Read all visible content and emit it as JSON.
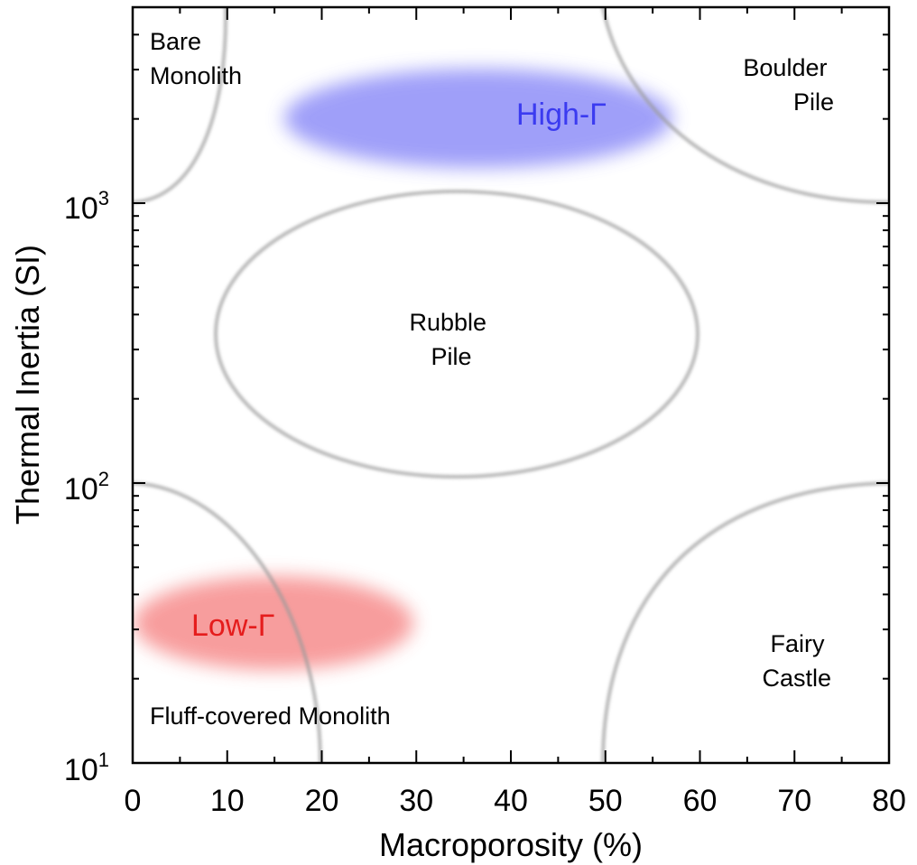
{
  "chart_data": {
    "type": "scatter",
    "xlabel": "Macroporosity (%)",
    "ylabel": "Thermal Inertia (SI)",
    "xlim": [
      0,
      80
    ],
    "ylim": [
      10,
      4000
    ],
    "y_scale": "log",
    "x_ticks": [
      "0",
      "10",
      "20",
      "30",
      "40",
      "50",
      "60",
      "70",
      "80"
    ],
    "y_tick_labels": [
      {
        "base": "10",
        "exp": "1",
        "value": 10
      },
      {
        "base": "10",
        "exp": "2",
        "value": 100
      },
      {
        "base": "10",
        "exp": "3",
        "value": 1000
      }
    ],
    "grid": false,
    "regions": [
      {
        "label": "Bare Monolith",
        "lines": [
          "Bare",
          "Monolith"
        ]
      },
      {
        "label": "Boulder Pile",
        "lines": [
          "Boulder",
          "Pile"
        ]
      },
      {
        "label": "Rubble Pile",
        "lines": [
          "Rubble",
          "Pile"
        ]
      },
      {
        "label": "Fairy Castle",
        "lines": [
          "Fairy",
          "Castle"
        ]
      },
      {
        "label": "Fluff-covered Monolith",
        "lines": [
          "Fluff-covered Monolith"
        ]
      }
    ],
    "highlights": [
      {
        "label": "High-Γ",
        "color": "#3b3bf0",
        "fill": "#8f8ff8",
        "x_range": [
          16,
          57
        ],
        "y_range": [
          1300,
          3100
        ]
      },
      {
        "label": "Low-Γ",
        "color": "#e51c1c",
        "fill": "#f79393",
        "x_range": [
          0,
          30
        ],
        "y_range": [
          19,
          50
        ]
      }
    ],
    "boundary_color": "#9a9a9a"
  }
}
